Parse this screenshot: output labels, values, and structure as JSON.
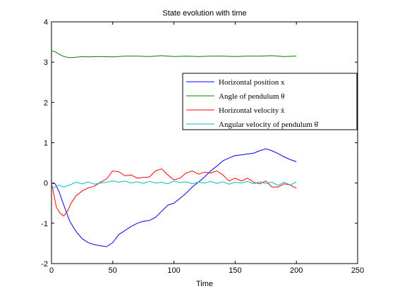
{
  "chart_data": {
    "type": "line",
    "title": "State evolution with time",
    "xlabel": "Time",
    "ylabel": "",
    "xlim": [
      0,
      250
    ],
    "ylim": [
      -2,
      4
    ],
    "xticks": [
      0,
      50,
      100,
      150,
      200,
      250
    ],
    "yticks": [
      -2,
      -1,
      0,
      1,
      2,
      3,
      4
    ],
    "legend_position": "right",
    "series": [
      {
        "name": "Horizontal position x",
        "color": "#0000ff",
        "x": [
          0,
          3,
          6,
          10,
          15,
          20,
          25,
          30,
          35,
          40,
          45,
          50,
          55,
          60,
          65,
          70,
          75,
          80,
          85,
          90,
          95,
          100,
          105,
          110,
          115,
          120,
          125,
          130,
          135,
          140,
          145,
          150,
          155,
          160,
          165,
          170,
          175,
          180,
          185,
          190,
          195,
          200
        ],
        "y": [
          0.0,
          -0.02,
          -0.2,
          -0.55,
          -0.95,
          -1.2,
          -1.38,
          -1.48,
          -1.53,
          -1.56,
          -1.58,
          -1.48,
          -1.28,
          -1.18,
          -1.08,
          -1.0,
          -0.95,
          -0.93,
          -0.85,
          -0.7,
          -0.55,
          -0.5,
          -0.38,
          -0.25,
          -0.1,
          0.02,
          0.15,
          0.3,
          0.42,
          0.55,
          0.62,
          0.68,
          0.7,
          0.72,
          0.74,
          0.8,
          0.85,
          0.8,
          0.73,
          0.65,
          0.58,
          0.53
        ]
      },
      {
        "name": "Angle of pendulum θ",
        "color": "#008000",
        "x": [
          0,
          3,
          6,
          10,
          15,
          20,
          25,
          30,
          40,
          50,
          60,
          70,
          80,
          90,
          100,
          110,
          120,
          130,
          140,
          150,
          160,
          170,
          180,
          190,
          200
        ],
        "y": [
          3.28,
          3.26,
          3.2,
          3.14,
          3.11,
          3.12,
          3.14,
          3.13,
          3.14,
          3.13,
          3.15,
          3.15,
          3.14,
          3.16,
          3.14,
          3.15,
          3.14,
          3.15,
          3.15,
          3.14,
          3.15,
          3.15,
          3.16,
          3.14,
          3.15
        ]
      },
      {
        "name": "Horizontal velocity ẋ",
        "color": "#ff0000",
        "x": [
          0,
          2,
          4,
          7,
          10,
          13,
          16,
          20,
          25,
          30,
          35,
          40,
          45,
          50,
          55,
          60,
          65,
          70,
          75,
          80,
          85,
          90,
          95,
          100,
          105,
          110,
          115,
          120,
          125,
          130,
          135,
          140,
          145,
          150,
          155,
          160,
          165,
          170,
          175,
          180,
          185,
          190,
          195,
          200
        ],
        "y": [
          0.0,
          -0.3,
          -0.6,
          -0.75,
          -0.82,
          -0.7,
          -0.5,
          -0.32,
          -0.2,
          -0.12,
          -0.08,
          0.02,
          0.1,
          0.3,
          0.28,
          0.18,
          0.2,
          0.12,
          0.14,
          0.15,
          0.3,
          0.35,
          0.2,
          0.08,
          0.12,
          0.25,
          0.3,
          0.22,
          0.27,
          0.25,
          0.3,
          0.2,
          0.05,
          0.12,
          0.05,
          0.12,
          0.02,
          -0.02,
          0.05,
          -0.1,
          -0.1,
          -0.02,
          -0.05,
          -0.13
        ]
      },
      {
        "name": "Angular velocity of pendulum θ̇",
        "color": "#00bfbf",
        "x": [
          0,
          3,
          6,
          10,
          15,
          20,
          25,
          30,
          35,
          40,
          45,
          50,
          55,
          60,
          65,
          70,
          75,
          80,
          85,
          90,
          95,
          100,
          105,
          110,
          115,
          120,
          125,
          130,
          135,
          140,
          145,
          150,
          155,
          160,
          165,
          170,
          175,
          180,
          185,
          190,
          195,
          200
        ],
        "y": [
          -0.15,
          -0.1,
          -0.05,
          -0.1,
          -0.05,
          0.02,
          -0.02,
          0.03,
          -0.03,
          0.0,
          0.02,
          0.05,
          0.02,
          0.05,
          0.0,
          0.03,
          -0.01,
          0.04,
          0.0,
          0.02,
          -0.02,
          0.05,
          0.01,
          0.03,
          -0.02,
          0.02,
          0.0,
          0.04,
          -0.01,
          0.03,
          -0.03,
          0.02,
          0.0,
          0.04,
          -0.02,
          0.03,
          -0.01,
          0.02,
          -0.06,
          0.02,
          -0.05,
          0.03
        ]
      }
    ]
  }
}
